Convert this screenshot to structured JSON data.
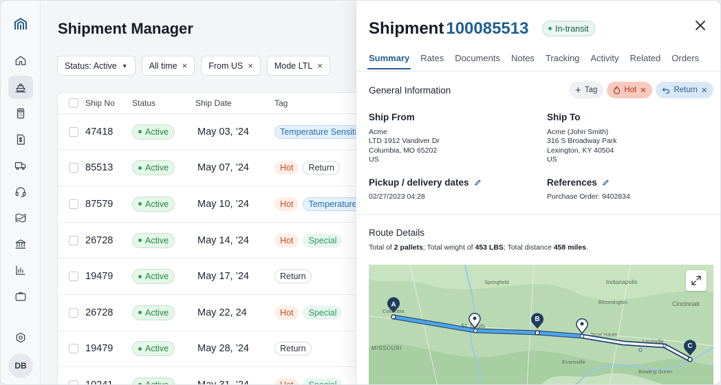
{
  "app": {
    "title": "Shipment Manager",
    "user_initials": "DB"
  },
  "sidebar": {
    "items": [
      {
        "icon": "home-icon"
      },
      {
        "icon": "ship-icon",
        "active": true
      },
      {
        "icon": "calculator-icon"
      },
      {
        "icon": "invoice-icon"
      },
      {
        "icon": "truck-icon"
      },
      {
        "icon": "headset-icon"
      },
      {
        "icon": "map-icon"
      },
      {
        "icon": "bank-icon"
      },
      {
        "icon": "chart-icon"
      },
      {
        "icon": "briefcase-icon"
      },
      {
        "icon": "settings-icon"
      }
    ]
  },
  "filters": [
    {
      "label": "Status: Active",
      "control": "caret"
    },
    {
      "label": "All time",
      "control": "×"
    },
    {
      "label": "From US",
      "control": "×"
    },
    {
      "label": "Mode LTL",
      "control": "×"
    }
  ],
  "table": {
    "headers": {
      "ship_no": "Ship No",
      "status": "Status",
      "ship_date": "Ship Date",
      "tag": "Tag"
    },
    "rows": [
      {
        "ship_no": "47418",
        "status": "Active",
        "ship_date": "May 03, ’24",
        "tags": [
          {
            "label": "Temperature Sensitive",
            "kind": "temp"
          }
        ]
      },
      {
        "ship_no": "85513",
        "status": "Active",
        "ship_date": "May 07, ’24",
        "tags": [
          {
            "label": "Hot",
            "kind": "hot"
          },
          {
            "label": "Return",
            "kind": "return"
          }
        ]
      },
      {
        "ship_no": "87579",
        "status": "Active",
        "ship_date": "May 10, ’24",
        "tags": [
          {
            "label": "Hot",
            "kind": "hot"
          },
          {
            "label": "Temperature Sensitive",
            "kind": "temp"
          }
        ]
      },
      {
        "ship_no": "26728",
        "status": "Active",
        "ship_date": "May 14, ’24",
        "tags": [
          {
            "label": "Hot",
            "kind": "hot"
          },
          {
            "label": "Special",
            "kind": "special"
          }
        ]
      },
      {
        "ship_no": "19479",
        "status": "Active",
        "ship_date": "May 17, ’24",
        "tags": [
          {
            "label": "Return",
            "kind": "return"
          }
        ]
      },
      {
        "ship_no": "26728",
        "status": "Active",
        "ship_date": "May 22, 24",
        "tags": [
          {
            "label": "Hot",
            "kind": "hot"
          },
          {
            "label": "Special",
            "kind": "special"
          }
        ]
      },
      {
        "ship_no": "19479",
        "status": "Active",
        "ship_date": "May 28, ’24",
        "tags": [
          {
            "label": "Return",
            "kind": "return"
          }
        ]
      },
      {
        "ship_no": "10241",
        "status": "Active",
        "ship_date": "May 31, ’24",
        "tags": [
          {
            "label": "Hot",
            "kind": "hot"
          },
          {
            "label": "Special",
            "kind": "special"
          }
        ]
      }
    ]
  },
  "panel": {
    "title_prefix": "Shipment",
    "shipment_number": "100085513",
    "status": "In-transit",
    "close_icon": "close-icon",
    "tabs": [
      "Summary",
      "Rates",
      "Documents",
      "Notes",
      "Tracking",
      "Activity",
      "Related",
      "Orders"
    ],
    "active_tab": "Summary",
    "general_info": {
      "heading": "General Information",
      "add_tag_label": "Tag",
      "tags": [
        {
          "label": "Hot",
          "icon": "flame-icon"
        },
        {
          "label": "Return",
          "icon": "return-icon"
        }
      ]
    },
    "ship_from": {
      "heading": "Ship From",
      "lines": [
        "Acme",
        "LTD 1912 Vandiver Dr",
        "Columbia, MO 65202",
        "US"
      ]
    },
    "ship_to": {
      "heading": "Ship To",
      "lines": [
        "Acme (John Smith)",
        "316 S Broadway Park",
        "Lexington, KY 40504",
        "US"
      ]
    },
    "pickup": {
      "heading": "Pickup / delivery dates",
      "value": "02/27/2023 04:28"
    },
    "references": {
      "heading": "References",
      "value": "Purchase Order: 9402834"
    },
    "route": {
      "heading": "Route Details",
      "pallets_prefix": "Total of ",
      "pallets": "2 pallets",
      "weight_prefix": ";  Total weight of ",
      "weight": "453 LBS",
      "distance_prefix": ";  Total distance ",
      "distance": "458 miles",
      "suffix": "."
    },
    "map": {
      "labels": [
        "Springfield",
        "Indianapolis",
        "Bloomington",
        "Columbia",
        "St. Louis",
        "Cincinnati",
        "Terre Haute",
        "Evansville",
        "MISSOURI",
        "Louisville",
        "Bowling Green"
      ],
      "markers": [
        "A",
        "B",
        "C"
      ]
    }
  }
}
